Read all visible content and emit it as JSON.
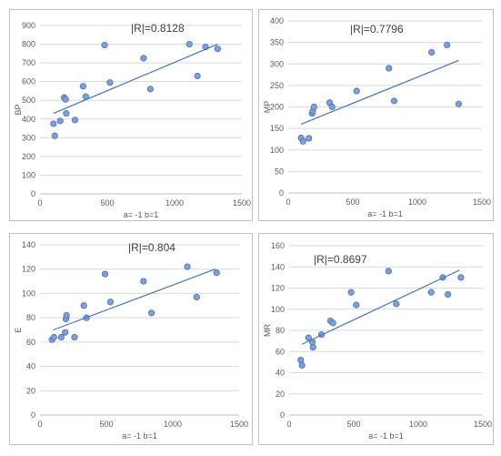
{
  "charts": [
    {
      "type": "scatter",
      "title": "",
      "annotation": "|R|=0.8128",
      "xlabel": "a= -1  b=1",
      "ylabel": "BP",
      "xlim": [
        0,
        1500
      ],
      "ylim": [
        0,
        900
      ],
      "xticks": [
        0,
        500,
        1000,
        1500
      ],
      "yticks": [
        0,
        100,
        200,
        300,
        400,
        500,
        600,
        700,
        800,
        900
      ],
      "grid": true,
      "marker_color": "#7f9fd9",
      "trend_color": "#4472c4",
      "points": [
        [
          100,
          375
        ],
        [
          110,
          310
        ],
        [
          150,
          390
        ],
        [
          180,
          515
        ],
        [
          190,
          505
        ],
        [
          195,
          430
        ],
        [
          260,
          395
        ],
        [
          320,
          575
        ],
        [
          340,
          520
        ],
        [
          480,
          795
        ],
        [
          520,
          595
        ],
        [
          770,
          725
        ],
        [
          820,
          560
        ],
        [
          1110,
          800
        ],
        [
          1170,
          630
        ],
        [
          1230,
          785
        ],
        [
          1320,
          775
        ]
      ],
      "trendline": [
        [
          100,
          430
        ],
        [
          1320,
          800
        ]
      ]
    },
    {
      "type": "scatter",
      "title": "",
      "annotation": "|R|=0.7796",
      "xlabel": "a= -1  b=1",
      "ylabel": "MP",
      "xlim": [
        0,
        1500
      ],
      "ylim": [
        0,
        400
      ],
      "xticks": [
        0,
        500,
        1000,
        1500
      ],
      "yticks": [
        0,
        50,
        100,
        150,
        200,
        250,
        300,
        350,
        400
      ],
      "grid": true,
      "marker_color": "#7f9fd9",
      "trend_color": "#4472c4",
      "points": [
        [
          100,
          128
        ],
        [
          115,
          120
        ],
        [
          160,
          127
        ],
        [
          185,
          185
        ],
        [
          190,
          190
        ],
        [
          200,
          200
        ],
        [
          320,
          210
        ],
        [
          340,
          200
        ],
        [
          530,
          237
        ],
        [
          780,
          290
        ],
        [
          820,
          214
        ],
        [
          1110,
          327
        ],
        [
          1230,
          344
        ],
        [
          1320,
          207
        ]
      ],
      "trendline": [
        [
          100,
          160
        ],
        [
          1320,
          308
        ]
      ]
    },
    {
      "type": "scatter",
      "title": "",
      "annotation": "|R|=0.804",
      "xlabel": "a= -1  b=1",
      "ylabel": "E",
      "xlim": [
        0,
        1500
      ],
      "ylim": [
        0,
        140
      ],
      "xticks": [
        0,
        500,
        1000,
        1500
      ],
      "yticks": [
        0,
        20,
        40,
        60,
        80,
        100,
        120,
        140
      ],
      "grid": true,
      "marker_color": "#7f9fd9",
      "trend_color": "#4472c4",
      "points": [
        [
          90,
          62
        ],
        [
          105,
          64
        ],
        [
          160,
          64
        ],
        [
          190,
          68
        ],
        [
          195,
          79
        ],
        [
          200,
          82
        ],
        [
          260,
          64
        ],
        [
          330,
          90
        ],
        [
          350,
          80
        ],
        [
          490,
          116
        ],
        [
          530,
          93
        ],
        [
          780,
          110
        ],
        [
          840,
          84
        ],
        [
          1110,
          122
        ],
        [
          1180,
          97
        ],
        [
          1330,
          117
        ]
      ],
      "trendline": [
        [
          100,
          70
        ],
        [
          1320,
          120
        ]
      ]
    },
    {
      "type": "scatter",
      "title": "",
      "annotation": "|R|=0.8697",
      "xlabel": "a= -1  b=1",
      "ylabel": "MR",
      "xlim": [
        0,
        1500
      ],
      "ylim": [
        0,
        160
      ],
      "xticks": [
        0,
        500,
        1000,
        1500
      ],
      "yticks": [
        0,
        20,
        40,
        60,
        80,
        100,
        120,
        140,
        160
      ],
      "grid": true,
      "marker_color": "#7f9fd9",
      "trend_color": "#4472c4",
      "points": [
        [
          90,
          52
        ],
        [
          100,
          47
        ],
        [
          150,
          73
        ],
        [
          180,
          69
        ],
        [
          185,
          64
        ],
        [
          250,
          76
        ],
        [
          320,
          89
        ],
        [
          340,
          87
        ],
        [
          480,
          116
        ],
        [
          520,
          104
        ],
        [
          770,
          136
        ],
        [
          830,
          105
        ],
        [
          1100,
          116
        ],
        [
          1190,
          130
        ],
        [
          1230,
          114
        ],
        [
          1330,
          130
        ]
      ],
      "trendline": [
        [
          100,
          67
        ],
        [
          1320,
          137
        ]
      ]
    }
  ]
}
